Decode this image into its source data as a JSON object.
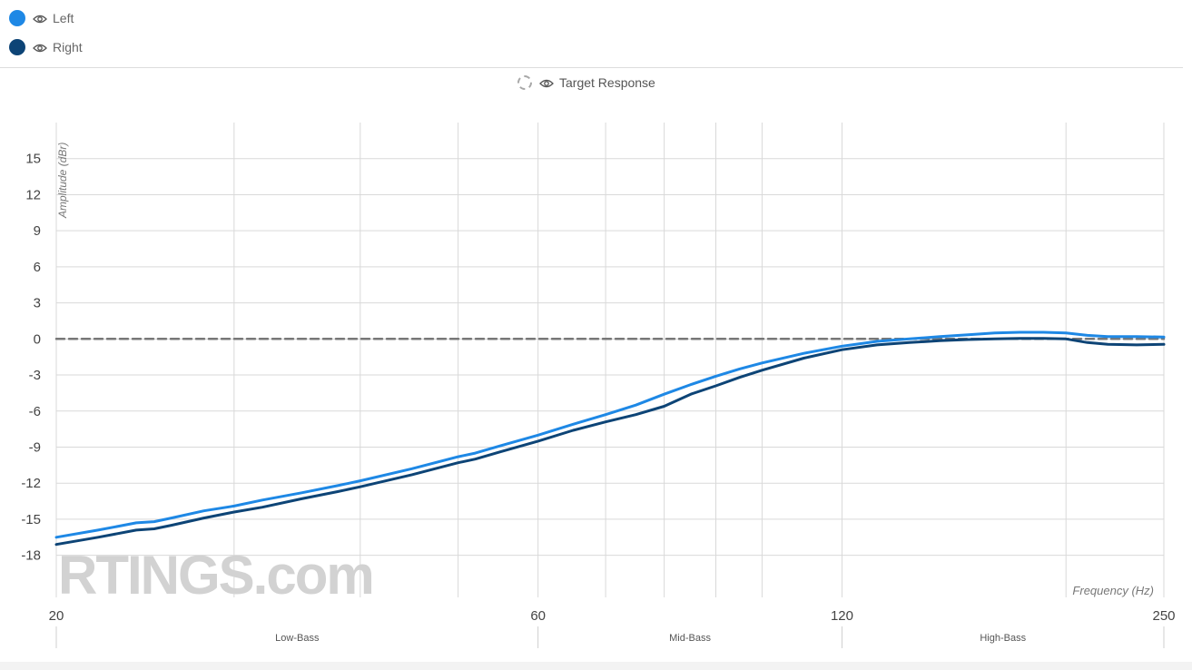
{
  "legend": {
    "items": [
      {
        "label": "Left",
        "color": "#1e88e5",
        "icon": "eye-icon"
      },
      {
        "label": "Right",
        "color": "#0d4476",
        "icon": "eye-icon"
      }
    ],
    "target": {
      "label": "Target Response",
      "icon": "eye-icon"
    }
  },
  "watermark": "RTINGS.com",
  "chart_data": {
    "type": "line",
    "ylabel": "Amplitude (dBr)",
    "xlabel": "Frequency (Hz)",
    "x_scale": "log",
    "xlim": [
      20,
      250
    ],
    "ylim": [
      -21.5,
      18
    ],
    "y_ticks": [
      15,
      12,
      9,
      6,
      3,
      0,
      -3,
      -6,
      -9,
      -12,
      -15,
      -18
    ],
    "x_ticks": [
      20,
      60,
      120,
      250
    ],
    "x_minor_gridlines": [
      30,
      40,
      50,
      70,
      80,
      90,
      100,
      200
    ],
    "grid": true,
    "bands": [
      {
        "label": "Low-Bass",
        "from": 20,
        "to": 60
      },
      {
        "label": "Mid-Bass",
        "from": 60,
        "to": 120
      },
      {
        "label": "High-Bass",
        "from": 120,
        "to": 250
      }
    ],
    "series": [
      {
        "name": "Left",
        "color": "#1e88e5",
        "points": [
          [
            20,
            -16.5
          ],
          [
            22,
            -15.9
          ],
          [
            24,
            -15.3
          ],
          [
            25,
            -15.2
          ],
          [
            26,
            -14.9
          ],
          [
            28,
            -14.3
          ],
          [
            30,
            -13.9
          ],
          [
            32,
            -13.4
          ],
          [
            35,
            -12.8
          ],
          [
            38,
            -12.2
          ],
          [
            40,
            -11.8
          ],
          [
            45,
            -10.8
          ],
          [
            50,
            -9.8
          ],
          [
            52,
            -9.5
          ],
          [
            55,
            -8.9
          ],
          [
            60,
            -8.0
          ],
          [
            65,
            -7.1
          ],
          [
            70,
            -6.3
          ],
          [
            75,
            -5.5
          ],
          [
            80,
            -4.6
          ],
          [
            85,
            -3.8
          ],
          [
            90,
            -3.1
          ],
          [
            95,
            -2.5
          ],
          [
            100,
            -2.0
          ],
          [
            110,
            -1.2
          ],
          [
            120,
            -0.6
          ],
          [
            130,
            -0.2
          ],
          [
            140,
            0.0
          ],
          [
            150,
            0.2
          ],
          [
            160,
            0.35
          ],
          [
            170,
            0.5
          ],
          [
            180,
            0.55
          ],
          [
            190,
            0.55
          ],
          [
            200,
            0.5
          ],
          [
            210,
            0.3
          ],
          [
            220,
            0.2
          ],
          [
            235,
            0.2
          ],
          [
            250,
            0.15
          ]
        ]
      },
      {
        "name": "Right",
        "color": "#0d4476",
        "points": [
          [
            20,
            -17.1
          ],
          [
            22,
            -16.5
          ],
          [
            24,
            -15.9
          ],
          [
            25,
            -15.8
          ],
          [
            26,
            -15.5
          ],
          [
            28,
            -14.9
          ],
          [
            30,
            -14.4
          ],
          [
            32,
            -14.0
          ],
          [
            35,
            -13.3
          ],
          [
            38,
            -12.7
          ],
          [
            40,
            -12.3
          ],
          [
            45,
            -11.3
          ],
          [
            50,
            -10.3
          ],
          [
            52,
            -10.0
          ],
          [
            55,
            -9.4
          ],
          [
            60,
            -8.5
          ],
          [
            65,
            -7.6
          ],
          [
            70,
            -6.9
          ],
          [
            75,
            -6.3
          ],
          [
            80,
            -5.6
          ],
          [
            85,
            -4.6
          ],
          [
            90,
            -3.9
          ],
          [
            95,
            -3.2
          ],
          [
            100,
            -2.6
          ],
          [
            110,
            -1.6
          ],
          [
            120,
            -0.9
          ],
          [
            130,
            -0.5
          ],
          [
            140,
            -0.3
          ],
          [
            150,
            -0.15
          ],
          [
            160,
            -0.05
          ],
          [
            170,
            0.0
          ],
          [
            180,
            0.05
          ],
          [
            190,
            0.05
          ],
          [
            200,
            0.0
          ],
          [
            210,
            -0.3
          ],
          [
            220,
            -0.45
          ],
          [
            235,
            -0.5
          ],
          [
            250,
            -0.45
          ]
        ]
      },
      {
        "name": "Target Response",
        "color": "#777777",
        "style": "dashed",
        "points": [
          [
            20,
            0
          ],
          [
            250,
            0
          ]
        ]
      }
    ]
  }
}
